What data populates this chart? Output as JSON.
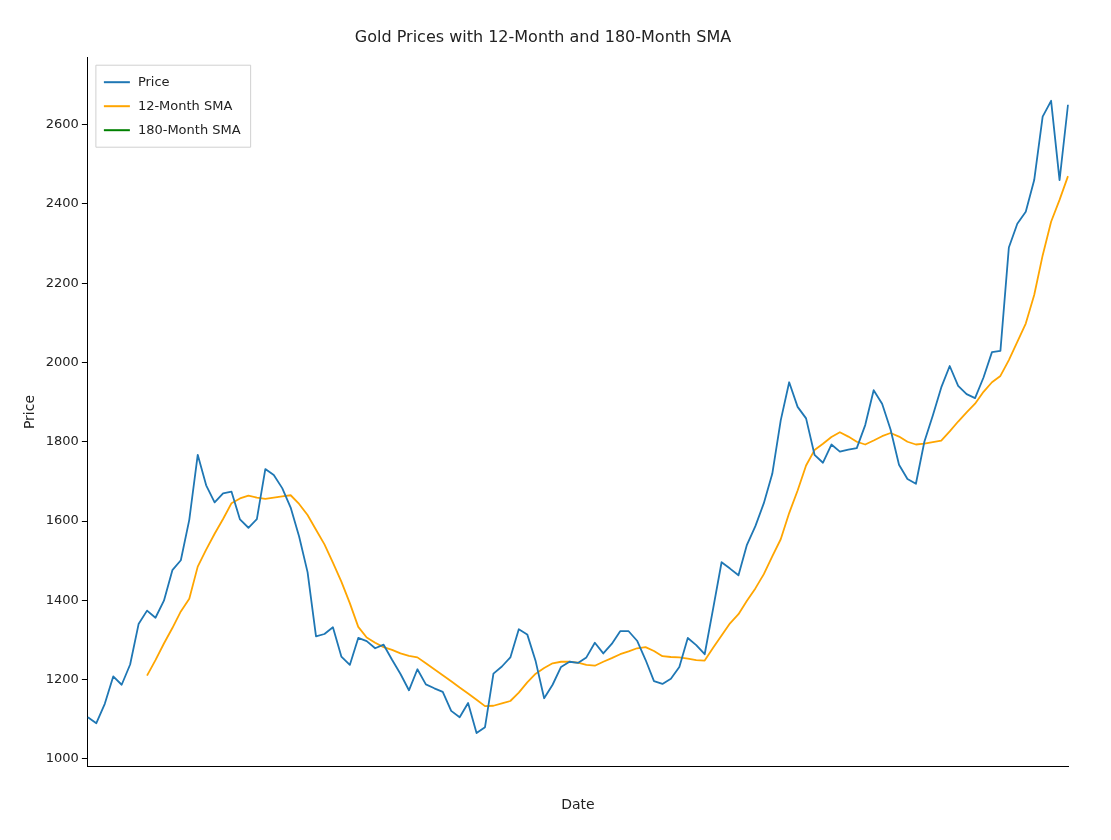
{
  "chart_data": {
    "type": "line",
    "title": "Gold Prices with 12-Month and 180-Month SMA",
    "xlabel": "Date",
    "ylabel": "Price",
    "categories": [
      null,
      null,
      null,
      null,
      null,
      null,
      null,
      null,
      null,
      null,
      null,
      null,
      null,
      null,
      null,
      null,
      null,
      null,
      null,
      null,
      null,
      null,
      null,
      null,
      null,
      null,
      null,
      null,
      null,
      null,
      null,
      null,
      null,
      null,
      null,
      null,
      null,
      null,
      null,
      null,
      null,
      null,
      null,
      null,
      null,
      null,
      null,
      null,
      null,
      null,
      null,
      null,
      null,
      null,
      null,
      null,
      null,
      null,
      null,
      null,
      null,
      null,
      null,
      null,
      null,
      null,
      null,
      null,
      null,
      null,
      null,
      null,
      null,
      null,
      null,
      null,
      null,
      null,
      null,
      null,
      null,
      null,
      null,
      null,
      null,
      null,
      null,
      null,
      null,
      null,
      null,
      null,
      null,
      null,
      null,
      null,
      null,
      null,
      null,
      null,
      null,
      null,
      null,
      null,
      null,
      null,
      null,
      null,
      null,
      null,
      null,
      null,
      null,
      null,
      null,
      null,
      null
    ],
    "series": [
      {
        "name": "Price",
        "color": "#1f77b4",
        "values": [
          1105,
          1090,
          1139,
          1208,
          1187,
          1238,
          1340,
          1374,
          1356,
          1399,
          1476,
          1501,
          1603,
          1767,
          1690,
          1647,
          1670,
          1674,
          1604,
          1583,
          1605,
          1731,
          1716,
          1683,
          1634,
          1561,
          1471,
          1309,
          1315,
          1332,
          1258,
          1237,
          1305,
          1297,
          1279,
          1288,
          1250,
          1214,
          1173,
          1226,
          1188,
          1178,
          1169,
          1121,
          1105,
          1141,
          1065,
          1080,
          1215,
          1233,
          1256,
          1327,
          1314,
          1246,
          1153,
          1187,
          1232,
          1245,
          1242,
          1256,
          1293,
          1266,
          1290,
          1322,
          1322,
          1298,
          1250,
          1196,
          1189,
          1202,
          1232,
          1305,
          1287,
          1264,
          1379,
          1496,
          1480,
          1463,
          1540,
          1587,
          1645,
          1719,
          1854,
          1950,
          1888,
          1859,
          1767,
          1747,
          1793,
          1775,
          1780,
          1784,
          1842,
          1930,
          1896,
          1831,
          1742,
          1706,
          1694,
          1800,
          1866,
          1937,
          1991,
          1941,
          1920,
          1910,
          1962,
          2026,
          2029,
          2290,
          2350,
          2380,
          2460,
          2620,
          2660,
          2460,
          2650
        ]
      },
      {
        "name": "12-Month SMA",
        "color": "#ffa500",
        "values": [
          null,
          null,
          null,
          null,
          null,
          null,
          null,
          1210,
          1249,
          1291,
          1330,
          1372,
          1404,
          1485,
          1528,
          1568,
          1605,
          1645,
          1657,
          1664,
          1659,
          1656,
          1659,
          1662,
          1665,
          1643,
          1615,
          1578,
          1541,
          1495,
          1447,
          1393,
          1333,
          1306,
          1293,
          1282,
          1275,
          1266,
          1260,
          1256,
          1241,
          1226,
          1211,
          1196,
          1180,
          1165,
          1149,
          1133,
          1134,
          1140,
          1146,
          1167,
          1193,
          1215,
          1229,
          1241,
          1245,
          1245,
          1243,
          1237,
          1235,
          1245,
          1254,
          1264,
          1271,
          1279,
          1282,
          1272,
          1259,
          1257,
          1256,
          1253,
          1249,
          1248,
          1280,
          1311,
          1342,
          1365,
          1399,
          1430,
          1466,
          1511,
          1554,
          1620,
          1677,
          1740,
          1779,
          1795,
          1812,
          1824,
          1813,
          1800,
          1793,
          1803,
          1814,
          1822,
          1813,
          1800,
          1793,
          1795,
          1799,
          1803,
          1826,
          1851,
          1874,
          1896,
          1926,
          1950,
          1966,
          2006,
          2052,
          2098,
          2170,
          2270,
          2355,
          2410,
          2470
        ]
      },
      {
        "name": "180-Month SMA",
        "color": "#008000",
        "values": [
          null,
          null,
          null,
          null,
          null,
          null,
          null,
          null,
          null,
          null,
          null,
          null,
          null,
          null,
          null,
          null,
          null,
          null,
          null,
          null,
          null,
          null,
          null,
          null,
          null,
          null,
          null,
          null,
          null,
          null,
          null,
          null,
          null,
          null,
          null,
          null,
          null,
          null,
          null,
          null,
          null,
          null,
          null,
          null,
          null,
          null,
          null,
          null,
          null,
          null,
          null,
          null,
          null,
          null,
          null,
          null,
          null,
          null,
          null,
          null,
          null,
          null,
          null,
          null,
          null,
          null,
          null,
          null,
          null,
          null,
          null,
          null,
          null,
          null,
          null,
          null,
          null,
          null,
          null,
          null,
          null,
          null,
          null,
          null,
          null,
          null,
          null,
          null,
          null,
          null,
          null,
          null,
          null,
          null,
          null,
          null,
          null,
          null,
          null,
          null,
          null,
          null,
          null,
          null,
          null,
          null,
          null,
          null,
          null,
          null,
          null,
          null,
          null,
          null,
          null,
          null,
          null
        ]
      }
    ],
    "ylim": [
      980,
      2770
    ],
    "yticks": [
      1000,
      1200,
      1400,
      1600,
      1800,
      2000,
      2200,
      2400,
      2600
    ],
    "grid": false,
    "legend": "top left",
    "marker": "none",
    "line_style": "solid"
  }
}
